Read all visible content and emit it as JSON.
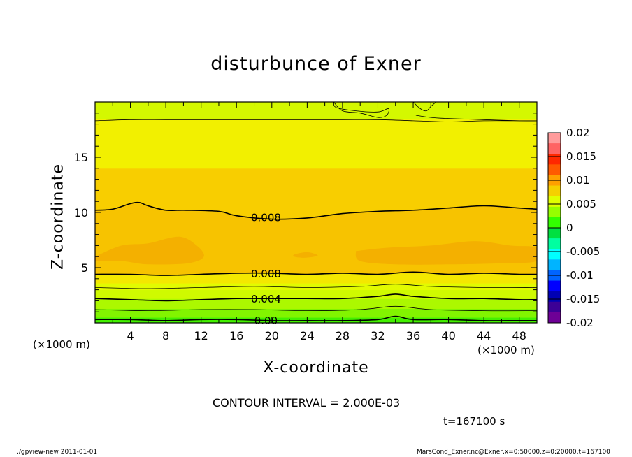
{
  "title": "disturbunce of Exner",
  "xaxis": {
    "label": "X-coordinate",
    "unit": "(×1000 m)"
  },
  "yaxis": {
    "label": "Z-coordinate"
  },
  "contour_interval_text": "CONTOUR INTERVAL = 2.000E-03",
  "time_text": "t=167100 s",
  "footer": {
    "left": "./gpview-new   2011-01-01",
    "right": "MarsCond_Exner.nc@Exner,x=0:50000,z=0:20000,t=167100"
  },
  "chart_data": {
    "type": "heatmap",
    "title": "disturbunce of Exner",
    "xlabel": "X-coordinate",
    "ylabel": "Z-coordinate",
    "xunit": "(×1000 m)",
    "xlim": [
      0,
      50
    ],
    "ylim": [
      0,
      20
    ],
    "xticks": [
      4,
      8,
      12,
      16,
      20,
      24,
      28,
      32,
      36,
      40,
      44,
      48
    ],
    "yticks": [
      5,
      10,
      15
    ],
    "x_minor_step": 2,
    "y_minor_step": 1,
    "colorbar": {
      "labels": [
        "0.02",
        "0.015",
        "0.01",
        "0.005",
        "0",
        "-0.005",
        "-0.01",
        "-0.015",
        "-0.02"
      ],
      "levels": [
        0.02,
        0.015,
        0.01,
        0.005,
        0,
        -0.005,
        -0.01,
        -0.015,
        -0.02
      ],
      "colors": [
        "#ff9c9c",
        "#ff6464",
        "#ff2800",
        "#ff5a00",
        "#ffa000",
        "#f5d000",
        "#e0ff00",
        "#96ff00",
        "#32ff00",
        "#00e040",
        "#00ffa0",
        "#00ffff",
        "#00b4ff",
        "#0064ff",
        "#0000ff",
        "#0000b4",
        "#3c0096",
        "#6e0096"
      ]
    },
    "bands": [
      {
        "z_from": 0.0,
        "z_to": 0.5,
        "value": 0.001,
        "color": "#43f000"
      },
      {
        "z_from": 0.5,
        "z_to": 1.3,
        "value": 0.0025,
        "color": "#82f400"
      },
      {
        "z_from": 1.3,
        "z_to": 2.2,
        "value": 0.0035,
        "color": "#acf800"
      },
      {
        "z_from": 2.2,
        "z_to": 3.0,
        "value": 0.0045,
        "color": "#cffa00"
      },
      {
        "z_from": 3.0,
        "z_to": 3.6,
        "value": 0.0055,
        "color": "#e2fb00"
      },
      {
        "z_from": 3.6,
        "z_to": 4.5,
        "value": 0.0065,
        "color": "#f4e800"
      },
      {
        "z_from": 4.5,
        "z_to": 14.0,
        "value": 0.0085,
        "color": "#f8ce00"
      },
      {
        "z_from": 14.0,
        "z_to": 18.5,
        "value": 0.0065,
        "color": "#f2f000"
      },
      {
        "z_from": 18.5,
        "z_to": 20.0,
        "value": 0.0045,
        "color": "#d4f800"
      }
    ],
    "region_colors": {
      "mid_band": "#f7c300",
      "max_patch": "#f4b000"
    },
    "max_patches": [
      {
        "x": [
          0.0,
          3.0,
          6.0,
          9.5,
          11.5,
          12.3,
          10.5,
          6.0,
          3.0,
          0.0
        ],
        "z": [
          6.0,
          7.0,
          7.2,
          7.8,
          7.0,
          6.0,
          5.4,
          5.3,
          5.6,
          5.6
        ]
      },
      {
        "x": [
          29.5,
          33.0,
          38.0,
          43.0,
          47.0,
          50.0,
          50.0,
          46.0,
          40.0,
          34.0,
          30.0
        ],
        "z": [
          6.5,
          6.8,
          7.0,
          7.4,
          7.0,
          6.8,
          5.6,
          5.4,
          5.3,
          5.3,
          5.6
        ]
      },
      {
        "x": [
          22.5,
          24.0,
          25.2,
          23.8,
          22.5
        ],
        "z": [
          6.2,
          6.4,
          6.1,
          5.9,
          6.0
        ]
      }
    ],
    "contours": [
      {
        "value": 0.008,
        "label": "0.008",
        "weight": "major",
        "x": [
          0,
          2,
          4,
          5,
          6,
          8,
          10,
          14,
          16,
          20,
          24,
          28,
          32,
          36,
          40,
          44,
          48,
          50
        ],
        "z": [
          10.2,
          10.3,
          10.8,
          10.9,
          10.6,
          10.2,
          10.2,
          10.1,
          9.7,
          9.4,
          9.5,
          9.9,
          10.1,
          10.2,
          10.4,
          10.6,
          10.4,
          10.3
        ],
        "label_x": 17.6
      },
      {
        "value": 0.008,
        "label": "0.008",
        "weight": "major",
        "x": [
          0,
          4,
          8,
          12,
          16,
          20,
          24,
          28,
          32,
          36,
          40,
          44,
          48,
          50
        ],
        "z": [
          4.4,
          4.4,
          4.3,
          4.4,
          4.5,
          4.5,
          4.4,
          4.5,
          4.4,
          4.6,
          4.4,
          4.5,
          4.4,
          4.4
        ],
        "label_x": 17.6
      },
      {
        "value": 0.004,
        "label": "0.004",
        "weight": "major",
        "x": [
          0,
          4,
          8,
          12,
          16,
          20,
          24,
          28,
          32,
          34,
          36,
          40,
          44,
          48,
          50
        ],
        "z": [
          2.2,
          2.1,
          2.0,
          2.1,
          2.2,
          2.2,
          2.2,
          2.2,
          2.4,
          2.6,
          2.4,
          2.2,
          2.2,
          2.1,
          2.1
        ],
        "label_x": 17.6
      },
      {
        "value": 0.0,
        "label": "0.00",
        "weight": "major",
        "x": [
          0,
          4,
          8,
          12,
          16,
          20,
          24,
          28,
          32,
          34,
          36,
          40,
          44,
          48,
          50
        ],
        "z": [
          0.3,
          0.3,
          0.2,
          0.3,
          0.3,
          0.2,
          0.2,
          0.2,
          0.3,
          0.6,
          0.3,
          0.3,
          0.2,
          0.2,
          0.2
        ],
        "label_x": 17.6
      },
      {
        "value": 0.006,
        "label": "",
        "weight": "minor",
        "x": [
          0,
          6,
          12,
          18,
          24,
          30,
          34,
          38,
          44,
          50
        ],
        "z": [
          3.2,
          3.1,
          3.2,
          3.3,
          3.2,
          3.3,
          3.5,
          3.3,
          3.2,
          3.2
        ]
      },
      {
        "value": 0.002,
        "label": "",
        "weight": "minor",
        "x": [
          0,
          6,
          12,
          18,
          24,
          30,
          34,
          38,
          44,
          50
        ],
        "z": [
          1.2,
          1.1,
          1.2,
          1.2,
          1.1,
          1.2,
          1.5,
          1.2,
          1.1,
          1.1
        ]
      },
      {
        "value": 0.004,
        "label": "",
        "weight": "minor",
        "x": [
          0,
          4,
          8,
          12,
          16,
          20,
          24,
          28,
          32,
          36,
          40,
          44,
          48,
          50
        ],
        "z": [
          18.3,
          18.4,
          18.4,
          18.4,
          18.4,
          18.4,
          18.4,
          18.4,
          18.4,
          18.3,
          18.2,
          18.3,
          18.3,
          18.3
        ]
      },
      {
        "value": 0.004,
        "label": "",
        "weight": "minor",
        "x": [
          27.0,
          27.3,
          29.5,
          32.0,
          33.2,
          33.0,
          32.0,
          30.0,
          28.0,
          27.0
        ],
        "z": [
          20.0,
          19.5,
          19.2,
          19.1,
          19.4,
          18.8,
          18.6,
          19.0,
          19.2,
          20.0
        ]
      },
      {
        "value": 0.004,
        "label": "",
        "weight": "minor",
        "x": [
          36.0,
          36.8,
          37.5,
          38.0,
          38.6
        ],
        "z": [
          20.0,
          19.4,
          19.2,
          19.6,
          20.0
        ]
      },
      {
        "value": 0.004,
        "label": "",
        "weight": "minor",
        "x": [
          36.3,
          38.0,
          40.0,
          44.0,
          48.0,
          50.0
        ],
        "z": [
          18.8,
          18.6,
          18.5,
          18.4,
          18.3,
          18.3
        ]
      }
    ]
  }
}
